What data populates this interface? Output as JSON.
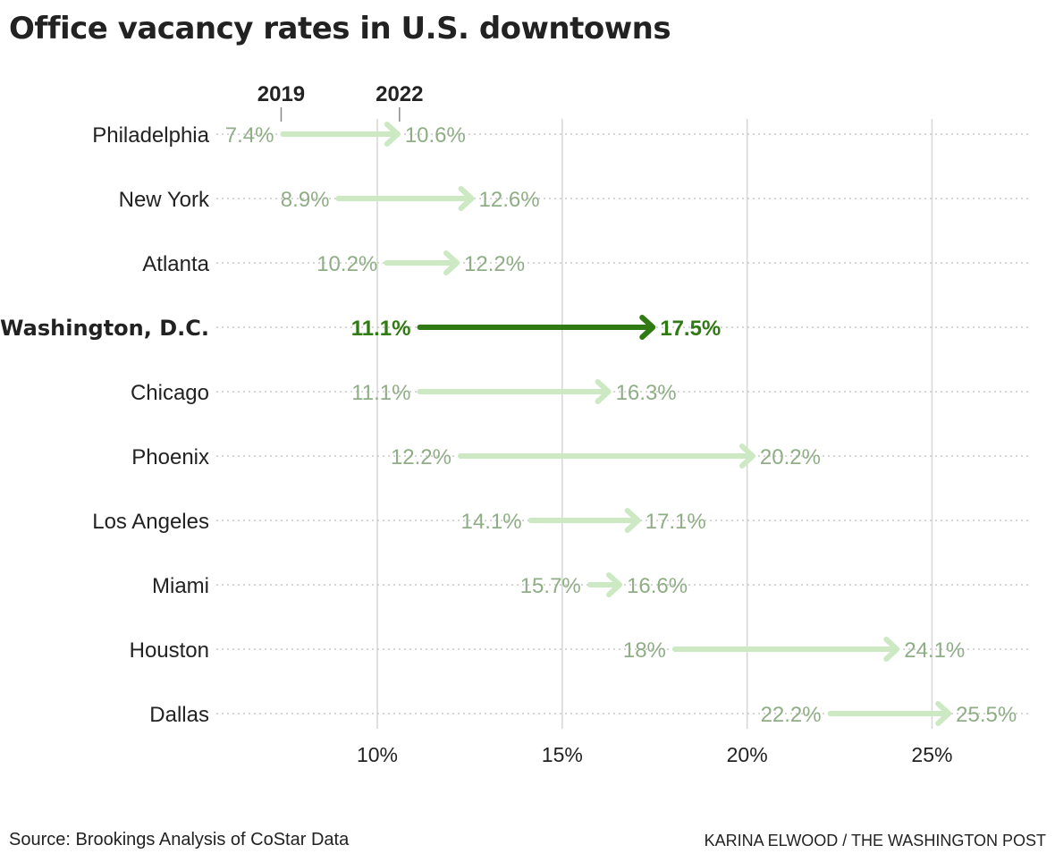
{
  "title": "Office vacancy rates in U.S. downtowns",
  "source": "Source: Brookings Analysis of CoStar Data",
  "credit": "KARINA ELWOOD / THE WASHINGTON POST",
  "colors": {
    "muted_arrow": "#cce9c4",
    "muted_label": "#8fae86",
    "highlight": "#2f7a12",
    "axis_text": "#222222",
    "gridline": "#d6d6d6",
    "dotted": "#c8c8c8"
  },
  "chart_data": {
    "type": "arrow-dot",
    "title": "Office vacancy rates in U.S. downtowns",
    "legend": [
      "2019",
      "2022"
    ],
    "x_ticks": [
      10,
      15,
      20,
      25
    ],
    "x_tick_labels": [
      "10%",
      "15%",
      "20%",
      "25%"
    ],
    "xlim": [
      5.6,
      27.6
    ],
    "highlight": "Washington, D.C.",
    "series": [
      {
        "city": "Philadelphia",
        "start": 7.4,
        "end": 10.6,
        "start_label": "7.4%",
        "end_label": "10.6%"
      },
      {
        "city": "New York",
        "start": 8.9,
        "end": 12.6,
        "start_label": "8.9%",
        "end_label": "12.6%"
      },
      {
        "city": "Atlanta",
        "start": 10.2,
        "end": 12.2,
        "start_label": "10.2%",
        "end_label": "12.2%"
      },
      {
        "city": "Washington, D.C.",
        "start": 11.1,
        "end": 17.5,
        "start_label": "11.1%",
        "end_label": "17.5%"
      },
      {
        "city": "Chicago",
        "start": 11.1,
        "end": 16.3,
        "start_label": "11.1%",
        "end_label": "16.3%"
      },
      {
        "city": "Phoenix",
        "start": 12.2,
        "end": 20.2,
        "start_label": "12.2%",
        "end_label": "20.2%"
      },
      {
        "city": "Los Angeles",
        "start": 14.1,
        "end": 17.1,
        "start_label": "14.1%",
        "end_label": "17.1%"
      },
      {
        "city": "Miami",
        "start": 15.7,
        "end": 16.6,
        "start_label": "15.7%",
        "end_label": "16.6%"
      },
      {
        "city": "Houston",
        "start": 18,
        "end": 24.1,
        "start_label": "18%",
        "end_label": "24.1%"
      },
      {
        "city": "Dallas",
        "start": 22.2,
        "end": 25.5,
        "start_label": "22.2%",
        "end_label": "25.5%"
      }
    ]
  }
}
